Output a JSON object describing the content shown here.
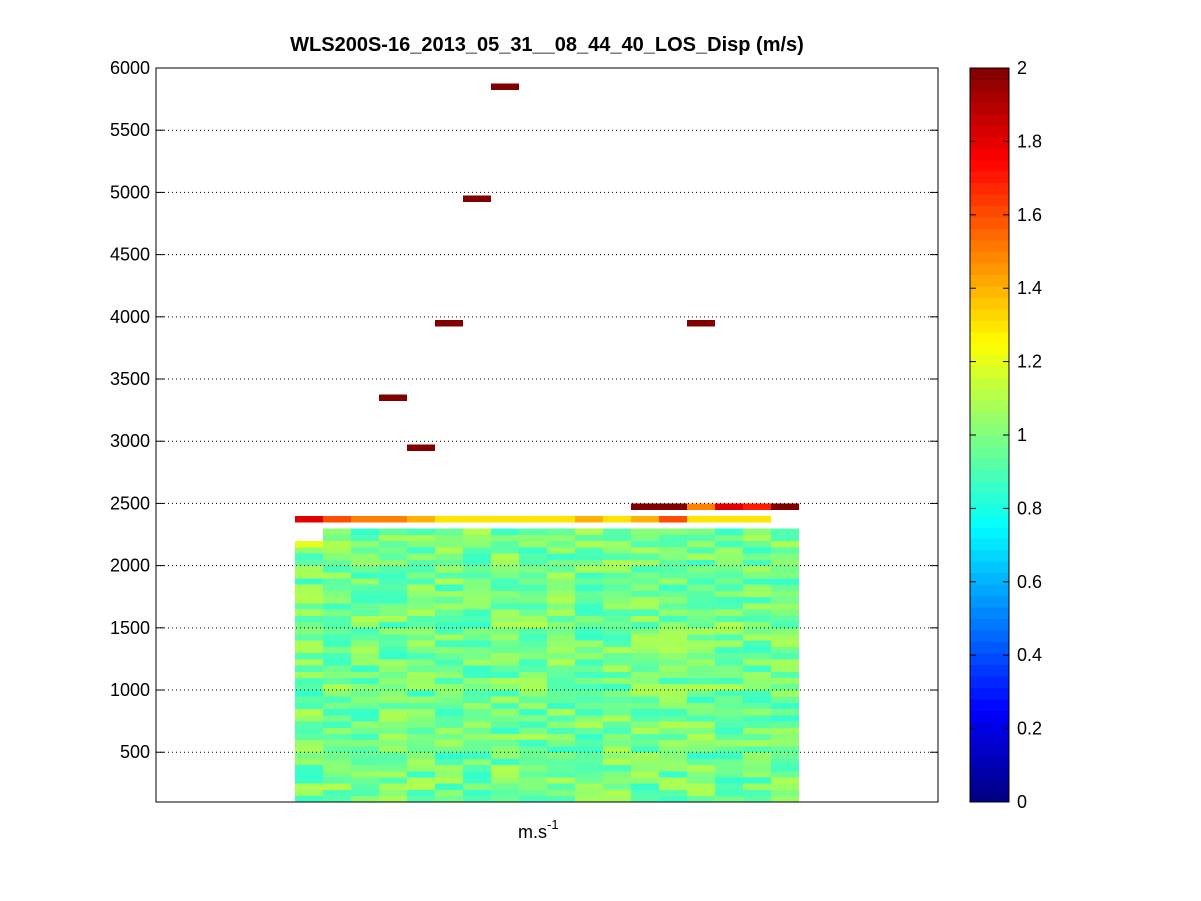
{
  "chart_data": {
    "type": "heatmap",
    "title": "WLS200S-16_2013_05_31__08_44_40_LOS_Disp (m/s)",
    "xlabel_base": "m.s",
    "xlabel_exp": "-1",
    "ylabel": "",
    "ylim": [
      100,
      6000
    ],
    "yticks": [
      500,
      1000,
      1500,
      2000,
      2500,
      3000,
      3500,
      4000,
      4500,
      5000,
      5500,
      6000
    ],
    "grid": "horizontal dotted",
    "colorbar": {
      "colormap": "jet",
      "clim": [
        0,
        2
      ],
      "ticks": [
        0,
        0.2,
        0.4,
        0.6,
        0.8,
        1,
        1.2,
        1.4,
        1.6,
        1.8,
        2
      ]
    },
    "columns": 18,
    "gate_spacing_m": 50,
    "first_gate_m": 125,
    "last_dense_gate_m": 2275,
    "bulk_range": [
      0.85,
      1.1
    ],
    "upper_row_cells": [
      {
        "col": 0,
        "y": 2375,
        "v": 1.8
      },
      {
        "col": 1,
        "y": 2375,
        "v": 1.6
      },
      {
        "col": 2,
        "y": 2375,
        "v": 1.5
      },
      {
        "col": 3,
        "y": 2375,
        "v": 1.5
      },
      {
        "col": 4,
        "y": 2375,
        "v": 1.4
      },
      {
        "col": 5,
        "y": 2375,
        "v": 1.3
      },
      {
        "col": 6,
        "y": 2375,
        "v": 1.3
      },
      {
        "col": 7,
        "y": 2375,
        "v": 1.3
      },
      {
        "col": 8,
        "y": 2375,
        "v": 1.3
      },
      {
        "col": 9,
        "y": 2375,
        "v": 1.3
      },
      {
        "col": 10,
        "y": 2375,
        "v": 1.4
      },
      {
        "col": 11,
        "y": 2375,
        "v": 1.3
      },
      {
        "col": 12,
        "y": 2375,
        "v": 1.4
      },
      {
        "col": 13,
        "y": 2375,
        "v": 1.6
      },
      {
        "col": 14,
        "y": 2375,
        "v": 1.3
      },
      {
        "col": 15,
        "y": 2375,
        "v": 1.3
      },
      {
        "col": 16,
        "y": 2375,
        "v": 1.3
      },
      {
        "col": 12,
        "y": 2475,
        "v": 2.0
      },
      {
        "col": 13,
        "y": 2475,
        "v": 2.0
      },
      {
        "col": 14,
        "y": 2475,
        "v": 1.5
      },
      {
        "col": 15,
        "y": 2475,
        "v": 1.8
      },
      {
        "col": 16,
        "y": 2475,
        "v": 1.7
      },
      {
        "col": 17,
        "y": 2475,
        "v": 2.0
      },
      {
        "col": 0,
        "y": 2175,
        "v": 1.2
      }
    ],
    "outlier_cells": [
      {
        "col": 7,
        "y": 5850,
        "v": 2.0
      },
      {
        "col": 6,
        "y": 4950,
        "v": 2.0
      },
      {
        "col": 5,
        "y": 3950,
        "v": 2.0
      },
      {
        "col": 14,
        "y": 3950,
        "v": 2.0
      },
      {
        "col": 3,
        "y": 3350,
        "v": 2.0
      },
      {
        "col": 4,
        "y": 2950,
        "v": 2.0
      }
    ]
  }
}
